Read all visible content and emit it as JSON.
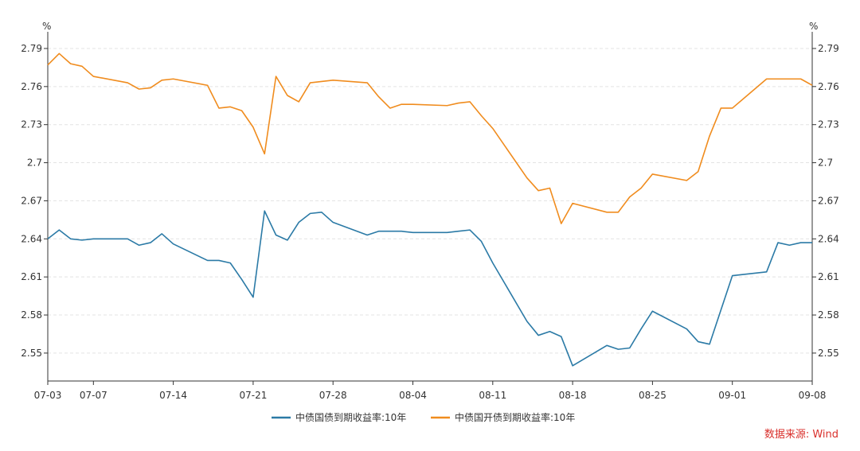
{
  "chart_data": {
    "type": "line",
    "unit_left": "%",
    "unit_right": "%",
    "x_tick_labels": [
      "07-03",
      "07-07",
      "07-14",
      "07-21",
      "07-28",
      "08-04",
      "08-11",
      "08-18",
      "08-25",
      "09-01",
      "09-08"
    ],
    "x_tick_days": [
      0,
      4,
      11,
      18,
      25,
      32,
      39,
      46,
      53,
      60,
      67
    ],
    "y_ticks": [
      2.55,
      2.58,
      2.61,
      2.64,
      2.67,
      2.7,
      2.73,
      2.76,
      2.79
    ],
    "y_tick_labels": [
      "2.55",
      "2.58",
      "2.61",
      "2.64",
      "2.67",
      "2.7",
      "2.73",
      "2.76",
      "2.79"
    ],
    "ylim": [
      2.528,
      2.8
    ],
    "grid": true,
    "legend_position": "bottom-center",
    "series": [
      {
        "name": "中债国债到期收益率:10年",
        "color": "#2b7aa6",
        "x": [
          0,
          1,
          2,
          3,
          4,
          7,
          8,
          9,
          10,
          11,
          14,
          15,
          16,
          17,
          18,
          19,
          20,
          21,
          22,
          23,
          24,
          25,
          28,
          29,
          30,
          31,
          32,
          35,
          36,
          37,
          38,
          39,
          42,
          43,
          44,
          45,
          46,
          49,
          50,
          51,
          52,
          53,
          56,
          57,
          58,
          59,
          60,
          63,
          64,
          65,
          66,
          67
        ],
        "values": [
          2.64,
          2.647,
          2.64,
          2.639,
          2.64,
          2.64,
          2.635,
          2.637,
          2.644,
          2.636,
          2.623,
          2.623,
          2.621,
          2.608,
          2.594,
          2.662,
          2.643,
          2.639,
          2.653,
          2.66,
          2.661,
          2.653,
          2.643,
          2.646,
          2.646,
          2.646,
          2.645,
          2.645,
          2.646,
          2.647,
          2.638,
          2.621,
          2.575,
          2.564,
          2.567,
          2.563,
          2.54,
          2.556,
          2.553,
          2.554,
          2.569,
          2.583,
          2.569,
          2.559,
          2.557,
          2.584,
          2.611,
          2.614,
          2.637,
          2.635,
          2.637,
          2.637
        ]
      },
      {
        "name": "中债国开债到期收益率:10年",
        "color": "#f08c1e",
        "x": [
          0,
          1,
          2,
          3,
          4,
          7,
          8,
          9,
          10,
          11,
          14,
          15,
          16,
          17,
          18,
          19,
          20,
          21,
          22,
          23,
          24,
          25,
          28,
          29,
          30,
          31,
          32,
          35,
          36,
          37,
          38,
          39,
          42,
          43,
          44,
          45,
          46,
          49,
          50,
          51,
          52,
          53,
          56,
          57,
          58,
          59,
          60,
          63,
          64,
          65,
          66,
          67
        ],
        "values": [
          2.777,
          2.786,
          2.778,
          2.776,
          2.768,
          2.763,
          2.758,
          2.759,
          2.765,
          2.766,
          2.761,
          2.743,
          2.744,
          2.741,
          2.728,
          2.707,
          2.768,
          2.753,
          2.748,
          2.763,
          2.764,
          2.765,
          2.763,
          2.752,
          2.743,
          2.746,
          2.746,
          2.745,
          2.747,
          2.748,
          2.737,
          2.727,
          2.688,
          2.678,
          2.68,
          2.652,
          2.668,
          2.661,
          2.661,
          2.673,
          2.68,
          2.691,
          2.686,
          2.693,
          2.721,
          2.743,
          2.743,
          2.766,
          2.766,
          2.766,
          2.766,
          2.761
        ]
      }
    ],
    "source_note": "数据来源: Wind"
  }
}
